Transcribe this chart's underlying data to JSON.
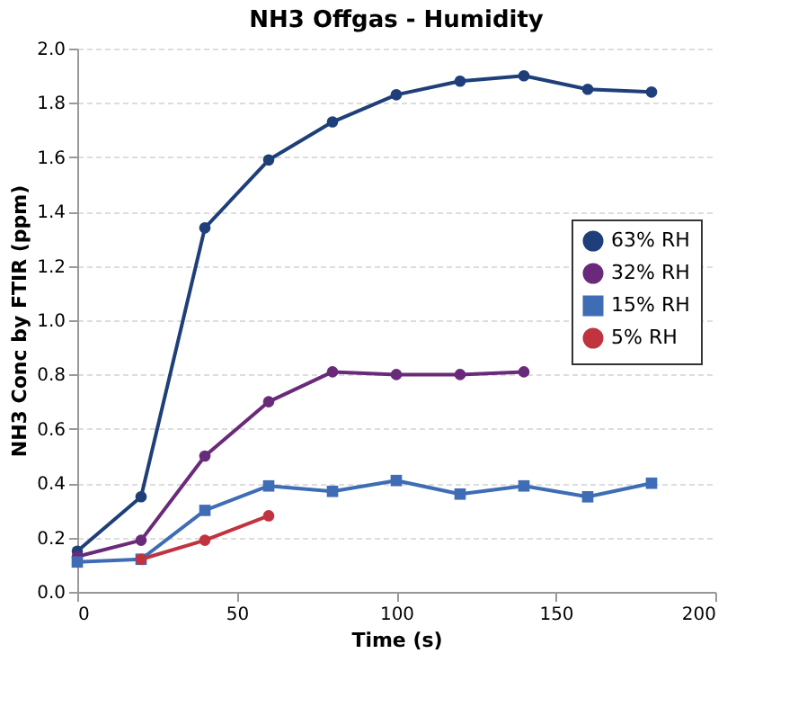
{
  "chart_data": {
    "type": "line",
    "title": "NH3 Offgas - Humidity",
    "xlabel": "Time (s)",
    "ylabel": "NH3 Conc by FTIR (ppm)",
    "xlim": [
      0,
      200
    ],
    "xticks": [
      0,
      50,
      100,
      150,
      200
    ],
    "ylim": [
      0,
      2
    ],
    "yticks": [
      {
        "value": 0,
        "label": "0.0"
      },
      {
        "value": 0.2,
        "label": "0.2"
      },
      {
        "value": 0.4,
        "label": "0.4"
      },
      {
        "value": 0.6,
        "label": "0.6"
      },
      {
        "value": 0.8,
        "label": "0.8"
      },
      {
        "value": 1,
        "label": "1.0"
      },
      {
        "value": 1.2,
        "label": "1.2"
      },
      {
        "value": 1.4,
        "label": "1.4"
      },
      {
        "value": 1.6,
        "label": "1.6"
      },
      {
        "value": 1.8,
        "label": "1.8"
      },
      {
        "value": 2,
        "label": "2.0"
      }
    ],
    "grid": "y",
    "legend": "right",
    "line_style": "solid",
    "series": [
      {
        "name": "63% RH",
        "color": "#1f3f7a",
        "marker": "circle",
        "x": [
          0,
          20,
          40,
          60,
          80,
          100,
          120,
          140,
          160,
          180
        ],
        "values": [
          0.15,
          0.35,
          1.34,
          1.59,
          1.73,
          1.83,
          1.88,
          1.9,
          1.85,
          1.84
        ]
      },
      {
        "name": "32% RH",
        "color": "#6a2a7a",
        "marker": "circle",
        "x": [
          0,
          20,
          40,
          60,
          80,
          100,
          120,
          140
        ],
        "values": [
          0.13,
          0.19,
          0.5,
          0.7,
          0.81,
          0.8,
          0.8,
          0.81
        ]
      },
      {
        "name": "15% RH",
        "color": "#3f6db5",
        "marker": "square",
        "x": [
          0,
          20,
          40,
          60,
          80,
          100,
          120,
          140,
          160,
          180
        ],
        "values": [
          0.11,
          0.12,
          0.3,
          0.39,
          0.37,
          0.41,
          0.36,
          0.39,
          0.35,
          0.4
        ]
      },
      {
        "name": "5% RH",
        "color": "#c0333f",
        "marker": "circle",
        "x": [
          20,
          40,
          60
        ],
        "values": [
          0.12,
          0.19,
          0.28
        ]
      }
    ]
  }
}
